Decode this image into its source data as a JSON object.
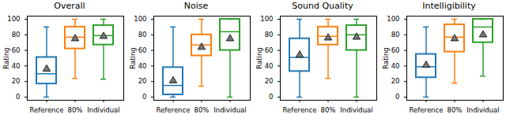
{
  "chart_data": [
    {
      "type": "box",
      "title": "Overall",
      "y_label": "Rating",
      "categories": [
        "Reference",
        "80%",
        "Individual"
      ],
      "colors": [
        "#1f77b4",
        "#ff7f0e",
        "#2ca02c"
      ],
      "marker": "triangle",
      "whisker_low": [
        0,
        24,
        23
      ],
      "q1": [
        17,
        62,
        67
      ],
      "median": [
        30,
        77,
        79
      ],
      "q3": [
        51,
        90,
        92
      ],
      "whisker_high": [
        90,
        100,
        100
      ],
      "mean": [
        36,
        75,
        78
      ],
      "ylim": [
        -4,
        104
      ],
      "yticks": [
        0,
        20,
        40,
        60,
        80,
        100
      ]
    },
    {
      "type": "box",
      "title": "Noise",
      "y_label": "Rating",
      "categories": [
        "Reference",
        "80%",
        "Individual"
      ],
      "colors": [
        "#1f77b4",
        "#ff7f0e",
        "#2ca02c"
      ],
      "marker": "triangle",
      "whisker_low": [
        0,
        14,
        0
      ],
      "q1": [
        3,
        53,
        60
      ],
      "median": [
        15,
        67,
        84
      ],
      "q3": [
        38,
        80,
        100
      ],
      "whisker_high": [
        90,
        100,
        100
      ],
      "mean": [
        21,
        64,
        75
      ],
      "ylim": [
        -4,
        104
      ],
      "yticks": [
        0,
        20,
        40,
        60,
        80,
        100
      ]
    },
    {
      "type": "box",
      "title": "Sound Quality",
      "y_label": "Rating",
      "categories": [
        "Reference",
        "80%",
        "Individual"
      ],
      "colors": [
        "#1f77b4",
        "#ff7f0e",
        "#2ca02c"
      ],
      "marker": "triangle",
      "whisker_low": [
        0,
        24,
        0
      ],
      "q1": [
        33,
        67,
        60
      ],
      "median": [
        51,
        78,
        80
      ],
      "q3": [
        75,
        90,
        92
      ],
      "whisker_high": [
        100,
        100,
        100
      ],
      "mean": [
        54,
        76,
        77
      ],
      "ylim": [
        -4,
        104
      ],
      "yticks": [
        0,
        20,
        40,
        60,
        80,
        100
      ]
    },
    {
      "type": "box",
      "title": "Intelligibility",
      "y_label": "Rating",
      "categories": [
        "Reference",
        "80%",
        "Individual"
      ],
      "colors": [
        "#1f77b4",
        "#ff7f0e",
        "#2ca02c"
      ],
      "marker": "triangle",
      "whisker_low": [
        0,
        18,
        27
      ],
      "q1": [
        25,
        58,
        70
      ],
      "median": [
        39,
        77,
        90
      ],
      "q3": [
        55,
        93,
        100
      ],
      "whisker_high": [
        90,
        100,
        100
      ],
      "mean": [
        41,
        75,
        80
      ],
      "ylim": [
        -4,
        104
      ],
      "yticks": [
        0,
        20,
        40,
        60,
        80,
        100
      ]
    }
  ]
}
